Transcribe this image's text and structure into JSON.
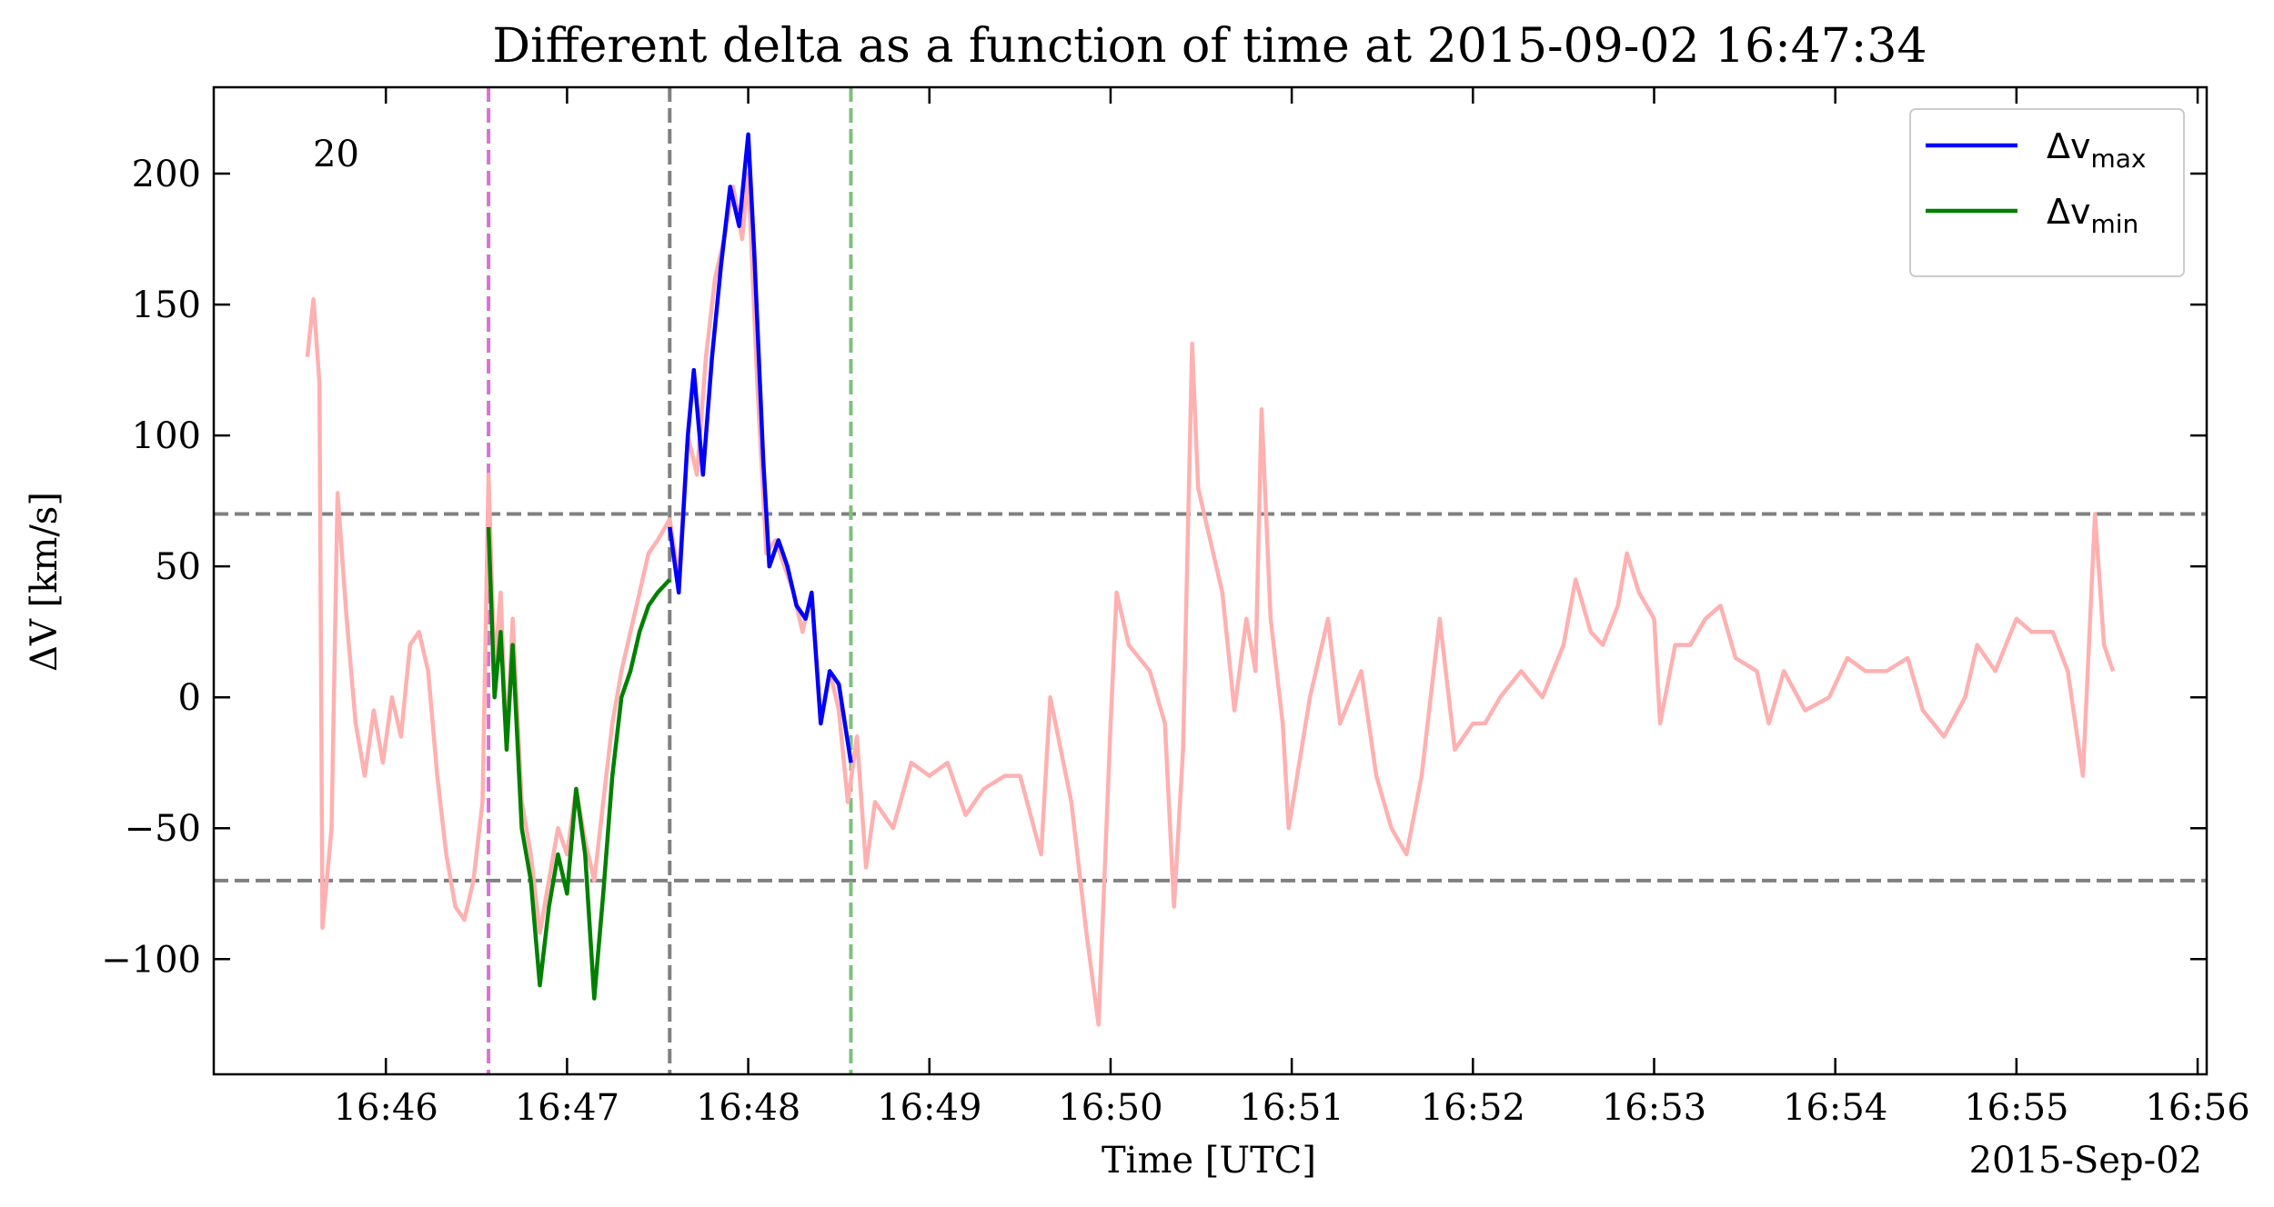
{
  "chart_data": {
    "type": "line",
    "title": "Different delta as a function of time at 2015-09-02 16:47:34",
    "x_label": "Time [UTC]",
    "y_label": "ΔV [km/s]",
    "date_label": "2015-Sep-02",
    "annotation": {
      "text": "20",
      "color": "#008000"
    },
    "xlim": [
      "16:45:03",
      "16:56:03"
    ],
    "ylim": [
      -144,
      233
    ],
    "xticks": [
      {
        "value": "16:46:00",
        "label": "16:46"
      },
      {
        "value": "16:47:00",
        "label": "16:47"
      },
      {
        "value": "16:48:00",
        "label": "16:48"
      },
      {
        "value": "16:49:00",
        "label": "16:49"
      },
      {
        "value": "16:50:00",
        "label": "16:50"
      },
      {
        "value": "16:51:00",
        "label": "16:51"
      },
      {
        "value": "16:52:00",
        "label": "16:52"
      },
      {
        "value": "16:53:00",
        "label": "16:53"
      },
      {
        "value": "16:54:00",
        "label": "16:54"
      },
      {
        "value": "16:55:00",
        "label": "16:55"
      },
      {
        "value": "16:56:00",
        "label": "16:56"
      }
    ],
    "yticks": [
      {
        "value": -100,
        "label": "−100"
      },
      {
        "value": -50,
        "label": "−50"
      },
      0,
      50,
      100,
      150,
      200
    ],
    "hlines": [
      {
        "y": 70,
        "color": "#808080"
      },
      {
        "y": -70,
        "color": "#808080"
      }
    ],
    "vlines": [
      {
        "x": "16:46:34",
        "color": "#da70d6"
      },
      {
        "x": "16:47:34",
        "color": "#808080"
      },
      {
        "x": "16:48:34",
        "color": "#7fbf7f"
      }
    ],
    "legend": "upper right",
    "series": [
      {
        "color": "#ffb0b0",
        "x": [
          "16:45:34",
          "16:45:36",
          "16:45:38",
          "16:45:39",
          "16:45:42",
          "16:45:44",
          "16:45:47",
          "16:45:50",
          "16:45:53",
          "16:45:56",
          "16:45:59",
          "16:46:02",
          "16:46:05",
          "16:46:08",
          "16:46:11",
          "16:46:14",
          "16:46:17",
          "16:46:20",
          "16:46:23",
          "16:46:26",
          "16:46:29",
          "16:46:32",
          "16:46:34",
          "16:46:36",
          "16:46:38",
          "16:46:40",
          "16:46:42",
          "16:46:45",
          "16:46:48",
          "16:46:51",
          "16:46:54",
          "16:46:57",
          "16:47:00",
          "16:47:03",
          "16:47:06",
          "16:47:09",
          "16:47:12",
          "16:47:15",
          "16:47:18",
          "16:47:21",
          "16:47:24",
          "16:47:27",
          "16:47:30",
          "16:47:34",
          "16:47:37",
          "16:47:40",
          "16:47:43",
          "16:47:46",
          "16:47:49",
          "16:47:52",
          "16:47:55",
          "16:47:58",
          "16:48:00",
          "16:48:03",
          "16:48:06",
          "16:48:09",
          "16:48:12",
          "16:48:15",
          "16:48:18",
          "16:48:21",
          "16:48:24",
          "16:48:27",
          "16:48:30",
          "16:48:33",
          "16:48:36",
          "16:48:39",
          "16:48:42",
          "16:48:48",
          "16:48:54",
          "16:49:00",
          "16:49:06",
          "16:49:12",
          "16:49:18",
          "16:49:25",
          "16:49:30",
          "16:49:37",
          "16:49:40",
          "16:49:47",
          "16:49:52",
          "16:49:56",
          "16:50:00",
          "16:50:02",
          "16:50:06",
          "16:50:13",
          "16:50:18",
          "16:50:21",
          "16:50:24",
          "16:50:27",
          "16:50:29",
          "16:50:33",
          "16:50:37",
          "16:50:41",
          "16:50:45",
          "16:50:48",
          "16:50:50",
          "16:50:53",
          "16:50:57",
          "16:50:59",
          "16:51:06",
          "16:51:12",
          "16:51:16",
          "16:51:23",
          "16:51:28",
          "16:51:33",
          "16:51:38",
          "16:51:43",
          "16:51:49",
          "16:51:54",
          "16:52:00",
          "16:52:04",
          "16:52:09",
          "16:52:16",
          "16:52:23",
          "16:52:30",
          "16:52:34",
          "16:52:39",
          "16:52:43",
          "16:52:48",
          "16:52:51",
          "16:52:55",
          "16:53:00",
          "16:53:02",
          "16:53:07",
          "16:53:12",
          "16:53:17",
          "16:53:22",
          "16:53:27",
          "16:53:34",
          "16:53:38",
          "16:53:43",
          "16:53:50",
          "16:53:58",
          "16:54:04",
          "16:54:10",
          "16:54:17",
          "16:54:24",
          "16:54:29",
          "16:54:36",
          "16:54:43",
          "16:54:47",
          "16:54:53",
          "16:55:00",
          "16:55:05",
          "16:55:12",
          "16:55:17",
          "16:55:22",
          "16:55:26",
          "16:55:29",
          "16:55:32"
        ],
        "values": [
          130,
          152,
          120,
          -88,
          -50,
          78,
          30,
          -10,
          -30,
          -5,
          -25,
          0,
          -15,
          20,
          25,
          10,
          -30,
          -60,
          -80,
          -85,
          -70,
          -40,
          85,
          10,
          40,
          -20,
          30,
          -40,
          -60,
          -90,
          -70,
          -50,
          -60,
          -35,
          -55,
          -70,
          -40,
          -10,
          10,
          25,
          40,
          55,
          60,
          68,
          45,
          100,
          85,
          130,
          160,
          175,
          195,
          175,
          200,
          120,
          55,
          60,
          50,
          40,
          25,
          40,
          -10,
          10,
          -5,
          -40,
          -15,
          -65,
          -40,
          -50,
          -25,
          -30,
          -25,
          -45,
          -35,
          -30,
          -30,
          -60,
          0,
          -40,
          -90,
          -125,
          -10,
          40,
          20,
          10,
          -10,
          -80,
          -20,
          135,
          80,
          60,
          40,
          -5,
          30,
          10,
          110,
          30,
          -10,
          -50,
          0,
          30,
          -10,
          10,
          -30,
          -50,
          -60,
          -30,
          30,
          -20,
          -10,
          -10,
          0,
          10,
          0,
          20,
          45,
          25,
          20,
          35,
          55,
          40,
          30,
          -10,
          20,
          20,
          30,
          35,
          15,
          10,
          -10,
          10,
          -5,
          0,
          15,
          10,
          10,
          15,
          -5,
          -15,
          0,
          20,
          10,
          30,
          25,
          25,
          10,
          -30,
          70,
          20,
          10
        ]
      },
      {
        "name": "Δv",
        "name_sub": "max",
        "color": "#0000ff",
        "x": [
          "16:47:34",
          "16:47:37",
          "16:47:40",
          "16:47:42",
          "16:47:45",
          "16:47:48",
          "16:47:51",
          "16:47:54",
          "16:47:57",
          "16:48:00",
          "16:48:02",
          "16:48:05",
          "16:48:07",
          "16:48:10",
          "16:48:13",
          "16:48:16",
          "16:48:19",
          "16:48:21",
          "16:48:24",
          "16:48:27",
          "16:48:30",
          "16:48:34"
        ],
        "values": [
          65,
          40,
          100,
          125,
          85,
          130,
          165,
          195,
          180,
          215,
          170,
          90,
          50,
          60,
          50,
          35,
          30,
          40,
          -10,
          10,
          5,
          -25
        ]
      },
      {
        "name": "Δv",
        "name_sub": "min",
        "color": "#008000",
        "x": [
          "16:46:34",
          "16:46:36",
          "16:46:38",
          "16:46:40",
          "16:46:42",
          "16:46:45",
          "16:46:48",
          "16:46:51",
          "16:46:54",
          "16:46:57",
          "16:47:00",
          "16:47:03",
          "16:47:06",
          "16:47:09",
          "16:47:12",
          "16:47:15",
          "16:47:18",
          "16:47:21",
          "16:47:24",
          "16:47:27",
          "16:47:30",
          "16:47:34"
        ],
        "values": [
          65,
          0,
          25,
          -20,
          20,
          -50,
          -70,
          -110,
          -80,
          -60,
          -75,
          -35,
          -60,
          -115,
          -75,
          -30,
          0,
          10,
          25,
          35,
          40,
          45
        ]
      }
    ]
  }
}
